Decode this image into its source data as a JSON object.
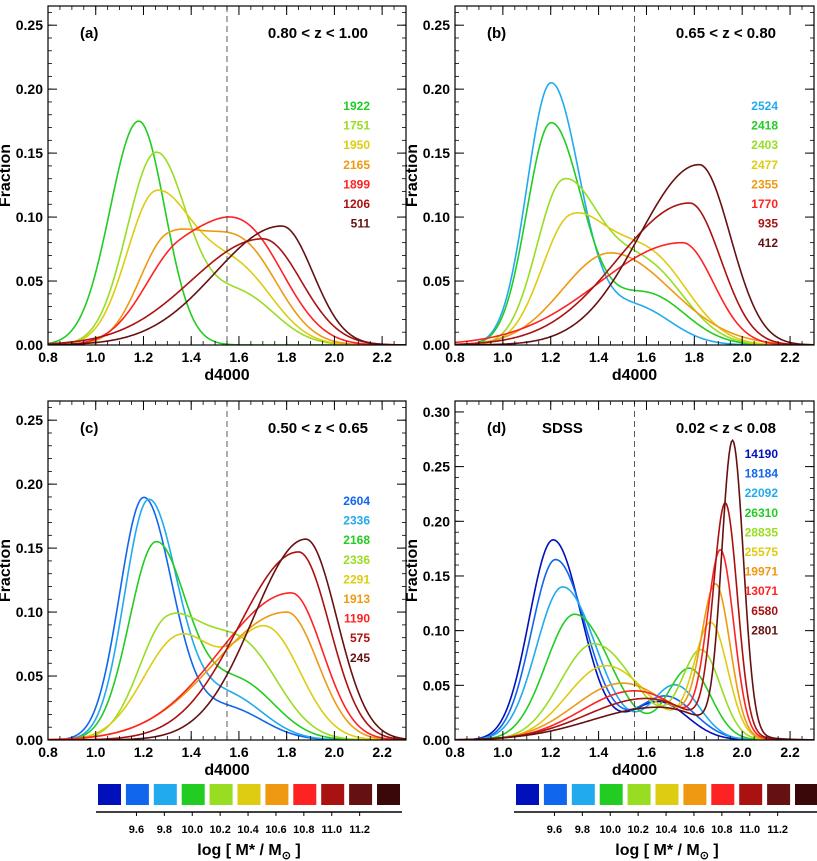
{
  "chart_data": [
    {
      "panel": "(a)",
      "label": "(a)",
      "redshift": "0.80 < z < 1.00",
      "extra_label": "",
      "type": "line",
      "xlabel": "d4000",
      "ylabel": "Fraction",
      "xlim": [
        0.8,
        2.3
      ],
      "ylim": [
        0,
        0.265
      ],
      "xticks": [
        0.8,
        1.0,
        1.2,
        1.4,
        1.6,
        1.8,
        2.0,
        2.2
      ],
      "yticks": [
        0.0,
        0.05,
        0.1,
        0.15,
        0.2,
        0.25
      ],
      "vline": 1.55,
      "legend": [
        {
          "text": "1922",
          "color": "#22cc22"
        },
        {
          "text": "1751",
          "color": "#99dd22"
        },
        {
          "text": "1950",
          "color": "#ddcc11"
        },
        {
          "text": "2165",
          "color": "#ee9911"
        },
        {
          "text": "1899",
          "color": "#ff2222"
        },
        {
          "text": "1206",
          "color": "#aa1111"
        },
        {
          "text": "511",
          "color": "#661111"
        }
      ],
      "series": [
        {
          "color": "#22cc22",
          "peak": 1.18,
          "amp": 0.175,
          "wl": 0.12,
          "wr": 0.11
        },
        {
          "color": "#99dd22",
          "peak": 1.25,
          "amp": 0.148,
          "wl": 0.12,
          "wr": 0.13,
          "p2": 1.6,
          "a2": 0.04,
          "w2": 0.15
        },
        {
          "color": "#ddcc11",
          "peak": 1.25,
          "amp": 0.117,
          "wl": 0.12,
          "wr": 0.16,
          "p2": 1.6,
          "a2": 0.055,
          "w2": 0.15
        },
        {
          "color": "#ee9911",
          "peak": 1.3,
          "amp": 0.08,
          "wl": 0.12,
          "wr": 0.16,
          "p2": 1.62,
          "a2": 0.072,
          "w2": 0.15
        },
        {
          "color": "#ff2222",
          "peak": 1.35,
          "amp": 0.07,
          "wl": 0.15,
          "wr": 0.2,
          "p2": 1.65,
          "a2": 0.07,
          "w2": 0.16
        },
        {
          "color": "#aa1111",
          "peak": 1.7,
          "amp": 0.083,
          "wl": 0.3,
          "wr": 0.16
        },
        {
          "color": "#661111",
          "peak": 1.78,
          "amp": 0.093,
          "wl": 0.28,
          "wr": 0.13
        }
      ]
    },
    {
      "panel": "(b)",
      "label": "(b)",
      "redshift": "0.65 < z < 0.80",
      "extra_label": "",
      "type": "line",
      "xlabel": "d4000",
      "ylabel": "Fraction",
      "xlim": [
        0.8,
        2.3
      ],
      "ylim": [
        0,
        0.265
      ],
      "xticks": [
        0.8,
        1.0,
        1.2,
        1.4,
        1.6,
        1.8,
        2.0,
        2.2
      ],
      "yticks": [
        0.0,
        0.05,
        0.1,
        0.15,
        0.2,
        0.25
      ],
      "vline": 1.55,
      "legend": [
        {
          "text": "2524",
          "color": "#22aaee"
        },
        {
          "text": "2418",
          "color": "#22cc22"
        },
        {
          "text": "2403",
          "color": "#99dd22"
        },
        {
          "text": "2477",
          "color": "#ddcc11"
        },
        {
          "text": "2355",
          "color": "#ee9911"
        },
        {
          "text": "1770",
          "color": "#ff2222"
        },
        {
          "text": "935",
          "color": "#aa1111"
        },
        {
          "text": "412",
          "color": "#661111"
        }
      ],
      "series": [
        {
          "color": "#22aaee",
          "peak": 1.2,
          "amp": 0.203,
          "wl": 0.1,
          "wr": 0.12,
          "p2": 1.55,
          "a2": 0.03,
          "w2": 0.15
        },
        {
          "color": "#22cc22",
          "peak": 1.2,
          "amp": 0.172,
          "wl": 0.1,
          "wr": 0.13,
          "p2": 1.6,
          "a2": 0.04,
          "w2": 0.16
        },
        {
          "color": "#99dd22",
          "peak": 1.25,
          "amp": 0.124,
          "wl": 0.11,
          "wr": 0.15,
          "p2": 1.6,
          "a2": 0.06,
          "w2": 0.16
        },
        {
          "color": "#ddcc11",
          "peak": 1.28,
          "amp": 0.095,
          "wl": 0.12,
          "wr": 0.16,
          "p2": 1.62,
          "a2": 0.065,
          "w2": 0.16
        },
        {
          "color": "#ee9911",
          "peak": 1.45,
          "amp": 0.072,
          "wl": 0.2,
          "wr": 0.25
        },
        {
          "color": "#ff2222",
          "peak": 1.75,
          "amp": 0.08,
          "wl": 0.35,
          "wr": 0.13
        },
        {
          "color": "#aa1111",
          "peak": 1.78,
          "amp": 0.111,
          "wl": 0.3,
          "wr": 0.13
        },
        {
          "color": "#661111",
          "peak": 1.82,
          "amp": 0.141,
          "wl": 0.25,
          "wr": 0.13
        }
      ]
    },
    {
      "panel": "(c)",
      "label": "(c)",
      "redshift": "0.50 < z < 0.65",
      "extra_label": "",
      "type": "line",
      "xlabel": "d4000",
      "ylabel": "Fraction",
      "xlim": [
        0.8,
        2.3
      ],
      "ylim": [
        0,
        0.265
      ],
      "xticks": [
        0.8,
        1.0,
        1.2,
        1.4,
        1.6,
        1.8,
        2.0,
        2.2
      ],
      "yticks": [
        0.0,
        0.05,
        0.1,
        0.15,
        0.2,
        0.25
      ],
      "vline": 1.55,
      "legend": [
        {
          "text": "2604",
          "color": "#1166ee"
        },
        {
          "text": "2336",
          "color": "#22aaee"
        },
        {
          "text": "2168",
          "color": "#22cc22"
        },
        {
          "text": "2336",
          "color": "#99dd22"
        },
        {
          "text": "2291",
          "color": "#ddcc11"
        },
        {
          "text": "1913",
          "color": "#ee9911"
        },
        {
          "text": "1190",
          "color": "#ff2222"
        },
        {
          "text": "575",
          "color": "#aa1111"
        },
        {
          "text": "245",
          "color": "#661111"
        }
      ],
      "series": [
        {
          "color": "#1166ee",
          "peak": 1.2,
          "amp": 0.188,
          "wl": 0.1,
          "wr": 0.12,
          "p2": 1.55,
          "a2": 0.025,
          "w2": 0.15
        },
        {
          "color": "#22aaee",
          "peak": 1.22,
          "amp": 0.185,
          "wl": 0.1,
          "wr": 0.12,
          "p2": 1.55,
          "a2": 0.035,
          "w2": 0.15
        },
        {
          "color": "#22cc22",
          "peak": 1.25,
          "amp": 0.152,
          "wl": 0.11,
          "wr": 0.13,
          "p2": 1.6,
          "a2": 0.045,
          "w2": 0.15
        },
        {
          "color": "#99dd22",
          "peak": 1.3,
          "amp": 0.09,
          "wl": 0.12,
          "wr": 0.15,
          "p2": 1.62,
          "a2": 0.07,
          "w2": 0.15
        },
        {
          "color": "#ddcc11",
          "peak": 1.35,
          "amp": 0.08,
          "wl": 0.15,
          "wr": 0.15,
          "p2": 1.72,
          "a2": 0.085,
          "w2": 0.14
        },
        {
          "color": "#ee9911",
          "peak": 1.8,
          "amp": 0.1,
          "wl": 0.3,
          "wr": 0.13
        },
        {
          "color": "#ff2222",
          "peak": 1.82,
          "amp": 0.115,
          "wl": 0.3,
          "wr": 0.13
        },
        {
          "color": "#aa1111",
          "peak": 1.85,
          "amp": 0.147,
          "wl": 0.25,
          "wr": 0.13
        },
        {
          "color": "#661111",
          "peak": 1.88,
          "amp": 0.157,
          "wl": 0.22,
          "wr": 0.13
        }
      ]
    },
    {
      "panel": "(d)",
      "label": "(d)",
      "redshift": "0.02 < z < 0.08",
      "extra_label": "SDSS",
      "type": "line",
      "xlabel": "d4000",
      "ylabel": "Fraction",
      "xlim": [
        0.8,
        2.3
      ],
      "ylim": [
        0,
        0.31
      ],
      "xticks": [
        0.8,
        1.0,
        1.2,
        1.4,
        1.6,
        1.8,
        2.0,
        2.2
      ],
      "yticks": [
        0.0,
        0.05,
        0.1,
        0.15,
        0.2,
        0.25,
        0.3
      ],
      "vline": 1.55,
      "legend": [
        {
          "text": "14190",
          "color": "#0011bb"
        },
        {
          "text": "18184",
          "color": "#1166ee"
        },
        {
          "text": "22092",
          "color": "#22aaee"
        },
        {
          "text": "26310",
          "color": "#22cc22"
        },
        {
          "text": "28835",
          "color": "#99dd22"
        },
        {
          "text": "25575",
          "color": "#ddcc11"
        },
        {
          "text": "19971",
          "color": "#ee9911"
        },
        {
          "text": "13071",
          "color": "#ff2222"
        },
        {
          "text": "6580",
          "color": "#aa1111"
        },
        {
          "text": "2801",
          "color": "#661111"
        }
      ],
      "series": [
        {
          "color": "#0011bb",
          "peak": 1.21,
          "amp": 0.183,
          "wl": 0.1,
          "wr": 0.12,
          "p2": 1.65,
          "a2": 0.035,
          "w2": 0.12
        },
        {
          "color": "#1166ee",
          "peak": 1.22,
          "amp": 0.165,
          "wl": 0.1,
          "wr": 0.13,
          "p2": 1.68,
          "a2": 0.04,
          "w2": 0.12
        },
        {
          "color": "#22aaee",
          "peak": 1.25,
          "amp": 0.14,
          "wl": 0.11,
          "wr": 0.14,
          "p2": 1.72,
          "a2": 0.05,
          "w2": 0.1
        },
        {
          "color": "#22cc22",
          "peak": 1.3,
          "amp": 0.115,
          "wl": 0.12,
          "wr": 0.15,
          "p2": 1.78,
          "a2": 0.065,
          "w2": 0.09
        },
        {
          "color": "#99dd22",
          "peak": 1.38,
          "amp": 0.088,
          "wl": 0.14,
          "wr": 0.17,
          "p2": 1.83,
          "a2": 0.08,
          "w2": 0.08
        },
        {
          "color": "#ddcc11",
          "peak": 1.43,
          "amp": 0.068,
          "wl": 0.16,
          "wr": 0.18,
          "p2": 1.87,
          "a2": 0.104,
          "w2": 0.07
        },
        {
          "color": "#ee9911",
          "peak": 1.5,
          "amp": 0.052,
          "wl": 0.2,
          "wr": 0.2,
          "p2": 1.89,
          "a2": 0.135,
          "w2": 0.06
        },
        {
          "color": "#ff2222",
          "peak": 1.55,
          "amp": 0.045,
          "wl": 0.22,
          "wr": 0.2,
          "p2": 1.91,
          "a2": 0.165,
          "w2": 0.055
        },
        {
          "color": "#aa1111",
          "peak": 1.6,
          "amp": 0.038,
          "wl": 0.25,
          "wr": 0.2,
          "p2": 1.93,
          "a2": 0.207,
          "w2": 0.05
        },
        {
          "color": "#661111",
          "peak": 1.65,
          "amp": 0.03,
          "wl": 0.28,
          "wr": 0.2,
          "p2": 1.96,
          "a2": 0.265,
          "w2": 0.045
        }
      ]
    }
  ],
  "colorbar": {
    "colors": [
      "#0011bb",
      "#1166ee",
      "#22aaee",
      "#22cc22",
      "#99dd22",
      "#ddcc11",
      "#ee9911",
      "#ff2222",
      "#aa1111",
      "#661111",
      "#3a0808"
    ],
    "tick_labels": [
      "9.6",
      "9.8",
      "10.0",
      "10.2",
      "10.4",
      "10.6",
      "10.8",
      "11.0",
      "11.2"
    ],
    "title": "log [ M* / M",
    "title_sub": "⊙",
    "title_end": " ]"
  }
}
